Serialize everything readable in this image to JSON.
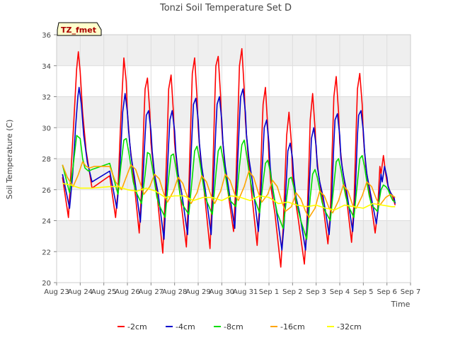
{
  "chart_data": {
    "type": "line",
    "title": "Tonzi Soil Temperature Set D",
    "xlabel": "Time",
    "ylabel": "Soil Temperature (C)",
    "tag": "TZ_fmet",
    "xlim": [
      0,
      15
    ],
    "ylim": [
      20,
      36
    ],
    "xticks": [
      0,
      1,
      2,
      3,
      4,
      5,
      6,
      7,
      8,
      9,
      10,
      11,
      12,
      13,
      14,
      15
    ],
    "xtick_labels": [
      "Aug 23",
      "Aug 24",
      "Aug 25",
      "Aug 26",
      "Aug 27",
      "Aug 28",
      "Aug 29",
      "Aug 30",
      "Aug 31",
      "Sep 1",
      "Sep 2",
      "Sep 3",
      "Sep 4",
      "Sep 5",
      "Sep 6",
      "Sep 7"
    ],
    "yticks": [
      20,
      22,
      24,
      26,
      28,
      30,
      32,
      34,
      36
    ],
    "x_unit": "days since Aug 23",
    "grid": true,
    "legend_position": "bottom",
    "series": [
      {
        "name": "-2cm",
        "color": "#ff0000",
        "x": [
          0.25,
          0.5,
          0.62,
          0.75,
          0.85,
          0.92,
          1.0,
          1.1,
          1.25,
          1.5,
          2.25,
          2.5,
          2.6,
          2.7,
          2.75,
          2.85,
          2.95,
          3.0,
          3.1,
          3.25,
          3.5,
          3.6,
          3.7,
          3.75,
          3.85,
          3.95,
          4.0,
          4.1,
          4.25,
          4.5,
          4.6,
          4.7,
          4.75,
          4.85,
          4.95,
          5.0,
          5.1,
          5.25,
          5.5,
          5.6,
          5.7,
          5.75,
          5.85,
          5.95,
          6.0,
          6.1,
          6.25,
          6.5,
          6.6,
          6.7,
          6.75,
          6.85,
          6.95,
          7.0,
          7.1,
          7.25,
          7.5,
          7.6,
          7.7,
          7.75,
          7.85,
          7.95,
          8.0,
          8.1,
          8.25,
          8.5,
          8.6,
          8.7,
          8.75,
          8.85,
          8.95,
          9.0,
          9.1,
          9.25,
          9.5,
          9.6,
          9.7,
          9.75,
          9.85,
          9.95,
          10.0,
          10.1,
          10.25,
          10.5,
          10.6,
          10.7,
          10.75,
          10.85,
          10.95,
          11.0,
          11.1,
          11.25,
          11.5,
          11.6,
          11.7,
          11.75,
          11.85,
          11.95,
          12.0,
          12.1,
          12.25,
          12.5,
          12.6,
          12.7,
          12.75,
          12.85,
          12.95,
          13.0,
          13.1,
          13.25,
          13.5,
          13.6,
          13.7,
          13.75,
          13.85,
          13.95,
          14.0,
          14.1,
          14.25,
          14.35
        ],
        "y": [
          26.8,
          24.2,
          27.5,
          31.0,
          33.8,
          34.9,
          33.6,
          31.0,
          28.5,
          26.1,
          26.9,
          24.2,
          26.0,
          29.8,
          31.5,
          34.5,
          33.0,
          31.0,
          29.0,
          27.0,
          23.2,
          26.0,
          30.5,
          32.5,
          33.2,
          31.0,
          29.0,
          27.5,
          25.8,
          21.9,
          25.5,
          30.0,
          32.5,
          33.4,
          31.0,
          29.0,
          27.5,
          25.5,
          22.3,
          26.0,
          31.0,
          33.5,
          34.5,
          32.0,
          30.0,
          28.0,
          26.0,
          22.2,
          26.0,
          31.5,
          34.0,
          34.6,
          32.0,
          30.0,
          28.0,
          26.0,
          23.3,
          26.5,
          31.5,
          34.0,
          35.1,
          32.5,
          30.5,
          28.5,
          26.0,
          22.4,
          25.0,
          29.5,
          31.5,
          32.6,
          30.0,
          28.0,
          26.0,
          24.5,
          21.0,
          23.5,
          27.5,
          29.5,
          31.0,
          29.0,
          27.0,
          25.5,
          24.0,
          21.2,
          23.5,
          28.0,
          30.5,
          32.2,
          30.0,
          28.5,
          27.0,
          25.5,
          22.5,
          24.5,
          29.5,
          32.0,
          33.3,
          31.0,
          29.0,
          27.5,
          26.0,
          22.6,
          25.0,
          30.0,
          32.5,
          33.5,
          31.5,
          29.5,
          27.5,
          26.0,
          23.2,
          24.5,
          27.5,
          27.0,
          28.2,
          27.0,
          26.5,
          26.0,
          25.5,
          25.0
        ]
      },
      {
        "name": "-4cm",
        "color": "#0000cc",
        "x": [
          0.25,
          0.55,
          0.68,
          0.8,
          0.9,
          0.95,
          1.05,
          1.15,
          1.3,
          1.5,
          2.25,
          2.55,
          2.65,
          2.75,
          2.8,
          2.9,
          3.0,
          3.05,
          3.15,
          3.3,
          3.55,
          3.65,
          3.75,
          3.8,
          3.9,
          4.0,
          4.05,
          4.15,
          4.3,
          4.55,
          4.65,
          4.75,
          4.8,
          4.9,
          5.0,
          5.05,
          5.15,
          5.3,
          5.55,
          5.65,
          5.75,
          5.8,
          5.9,
          6.0,
          6.05,
          6.15,
          6.3,
          6.55,
          6.65,
          6.75,
          6.8,
          6.9,
          7.0,
          7.05,
          7.15,
          7.3,
          7.55,
          7.65,
          7.75,
          7.8,
          7.9,
          8.0,
          8.05,
          8.15,
          8.3,
          8.55,
          8.65,
          8.75,
          8.8,
          8.9,
          9.0,
          9.05,
          9.15,
          9.3,
          9.55,
          9.65,
          9.75,
          9.8,
          9.9,
          10.0,
          10.05,
          10.15,
          10.3,
          10.55,
          10.65,
          10.75,
          10.8,
          10.9,
          11.0,
          11.05,
          11.15,
          11.3,
          11.55,
          11.65,
          11.75,
          11.8,
          11.9,
          12.0,
          12.05,
          12.15,
          12.3,
          12.55,
          12.65,
          12.75,
          12.8,
          12.9,
          13.0,
          13.05,
          13.15,
          13.3,
          13.55,
          13.65,
          13.75,
          13.8,
          13.9,
          14.0,
          14.05,
          14.15,
          14.3,
          14.35
        ],
        "y": [
          27.0,
          24.8,
          27.0,
          30.0,
          32.0,
          32.6,
          31.5,
          29.5,
          27.8,
          26.5,
          27.2,
          24.8,
          26.5,
          29.5,
          31.0,
          32.2,
          31.0,
          29.8,
          28.2,
          26.8,
          23.9,
          26.5,
          29.5,
          30.8,
          31.1,
          29.8,
          28.5,
          27.0,
          25.8,
          22.8,
          25.8,
          29.0,
          30.5,
          31.1,
          29.8,
          28.5,
          27.0,
          25.8,
          23.1,
          26.5,
          30.0,
          31.5,
          31.9,
          30.5,
          29.0,
          27.5,
          26.0,
          23.1,
          26.5,
          30.0,
          31.5,
          32.0,
          30.5,
          29.0,
          27.5,
          26.0,
          23.5,
          27.0,
          30.5,
          32.0,
          32.5,
          31.0,
          29.5,
          28.0,
          26.5,
          23.3,
          25.5,
          28.5,
          30.0,
          30.5,
          29.0,
          27.5,
          26.0,
          24.8,
          22.1,
          24.0,
          27.0,
          28.5,
          29.0,
          28.0,
          26.8,
          25.5,
          24.5,
          22.1,
          24.5,
          27.5,
          29.3,
          30.0,
          28.8,
          27.5,
          26.5,
          25.5,
          23.1,
          25.0,
          29.0,
          30.5,
          30.9,
          29.5,
          28.0,
          27.0,
          25.8,
          23.3,
          25.5,
          29.5,
          30.8,
          31.1,
          29.8,
          28.5,
          27.0,
          25.8,
          23.8,
          25.0,
          27.0,
          26.5,
          27.5,
          26.8,
          26.2,
          25.8,
          25.5,
          25.1
        ]
      },
      {
        "name": "-8cm",
        "color": "#00dd00",
        "x": [
          0.25,
          0.55,
          0.7,
          0.85,
          1.0,
          1.1,
          1.2,
          1.35,
          1.5,
          2.25,
          2.6,
          2.72,
          2.85,
          2.95,
          3.05,
          3.15,
          3.25,
          3.35,
          3.6,
          3.75,
          3.85,
          3.95,
          4.05,
          4.15,
          4.25,
          4.35,
          4.6,
          4.75,
          4.85,
          4.95,
          5.05,
          5.15,
          5.25,
          5.35,
          5.6,
          5.75,
          5.85,
          5.95,
          6.05,
          6.15,
          6.25,
          6.35,
          6.6,
          6.75,
          6.85,
          6.95,
          7.05,
          7.15,
          7.25,
          7.35,
          7.6,
          7.75,
          7.85,
          7.95,
          8.05,
          8.15,
          8.25,
          8.35,
          8.6,
          8.75,
          8.85,
          8.95,
          9.05,
          9.15,
          9.25,
          9.35,
          9.6,
          9.75,
          9.85,
          9.95,
          10.05,
          10.15,
          10.25,
          10.35,
          10.6,
          10.75,
          10.85,
          10.95,
          11.05,
          11.15,
          11.25,
          11.35,
          11.6,
          11.75,
          11.85,
          11.95,
          12.05,
          12.15,
          12.25,
          12.35,
          12.6,
          12.75,
          12.85,
          12.95,
          13.05,
          13.15,
          13.25,
          13.35,
          13.6,
          13.75,
          13.85,
          13.95,
          14.05,
          14.15,
          14.25,
          14.35
        ],
        "y": [
          27.6,
          25.8,
          27.5,
          29.5,
          29.3,
          28.0,
          27.4,
          27.2,
          27.3,
          27.7,
          25.7,
          27.5,
          29.2,
          29.3,
          28.5,
          27.5,
          26.5,
          25.9,
          25.1,
          27.0,
          28.4,
          28.3,
          27.5,
          26.5,
          25.5,
          25.0,
          24.2,
          26.8,
          28.2,
          28.3,
          27.5,
          26.5,
          25.5,
          25.0,
          24.4,
          26.8,
          28.5,
          28.8,
          28.0,
          27.0,
          26.0,
          25.3,
          24.4,
          27.0,
          28.5,
          28.8,
          28.0,
          27.0,
          26.0,
          25.3,
          24.9,
          27.5,
          28.9,
          29.2,
          28.3,
          27.2,
          26.3,
          25.6,
          24.5,
          26.5,
          27.7,
          27.9,
          27.2,
          26.2,
          25.3,
          24.5,
          23.5,
          25.5,
          26.7,
          26.8,
          26.2,
          25.3,
          24.6,
          24.0,
          22.8,
          25.5,
          27.0,
          27.3,
          26.8,
          26.0,
          25.2,
          24.7,
          24.0,
          26.3,
          27.8,
          28.0,
          27.3,
          26.4,
          25.6,
          25.0,
          24.2,
          26.5,
          28.0,
          28.2,
          27.5,
          26.5,
          25.6,
          25.0,
          24.6,
          26.0,
          26.3,
          26.2,
          26.0,
          25.6,
          25.3,
          25.2
        ]
      },
      {
        "name": "-16cm",
        "color": "#ffa500",
        "x": [
          0.25,
          0.45,
          0.7,
          0.9,
          1.1,
          1.25,
          1.4,
          1.6,
          2.25,
          2.5,
          2.75,
          2.95,
          3.15,
          3.35,
          3.55,
          3.7,
          3.95,
          4.15,
          4.35,
          4.55,
          4.7,
          4.95,
          5.15,
          5.35,
          5.55,
          5.7,
          5.95,
          6.15,
          6.35,
          6.55,
          6.7,
          6.95,
          7.15,
          7.35,
          7.55,
          7.7,
          7.95,
          8.15,
          8.35,
          8.55,
          8.7,
          8.95,
          9.15,
          9.35,
          9.55,
          9.7,
          9.95,
          10.15,
          10.35,
          10.55,
          10.7,
          10.95,
          11.15,
          11.35,
          11.55,
          11.7,
          11.95,
          12.15,
          12.35,
          12.55,
          12.7,
          12.95,
          13.15,
          13.35,
          13.55,
          13.7,
          13.95,
          14.15,
          14.35
        ],
        "y": [
          27.6,
          26.8,
          26.2,
          26.9,
          27.8,
          27.5,
          27.4,
          27.5,
          27.5,
          26.5,
          26.0,
          26.8,
          27.6,
          27.3,
          26.4,
          25.7,
          26.2,
          27.0,
          26.7,
          25.7,
          25.2,
          25.9,
          26.8,
          26.4,
          25.5,
          25.1,
          25.8,
          26.9,
          26.5,
          25.6,
          25.1,
          25.9,
          27.0,
          26.6,
          25.7,
          25.3,
          26.2,
          27.2,
          26.8,
          25.8,
          25.2,
          25.7,
          26.6,
          26.2,
          25.2,
          24.6,
          24.9,
          25.8,
          25.4,
          24.6,
          24.2,
          24.8,
          25.9,
          25.6,
          24.8,
          24.5,
          25.3,
          26.3,
          25.9,
          25.0,
          24.8,
          25.6,
          26.5,
          26.2,
          25.4,
          25.0,
          25.5,
          25.7,
          25.5
        ]
      },
      {
        "name": "-32cm",
        "color": "#ffff00",
        "x": [
          0.25,
          0.6,
          1.0,
          1.5,
          2.25,
          2.6,
          3.0,
          3.4,
          3.8,
          4.2,
          4.6,
          5.0,
          5.4,
          5.8,
          6.2,
          6.6,
          7.0,
          7.4,
          7.8,
          8.2,
          8.6,
          9.0,
          9.4,
          9.8,
          10.2,
          10.6,
          11.0,
          11.4,
          11.8,
          12.2,
          12.6,
          13.0,
          13.4,
          13.8,
          14.2,
          14.35
        ],
        "y": [
          26.4,
          26.3,
          26.1,
          26.1,
          26.2,
          26.2,
          26.0,
          25.9,
          26.1,
          25.9,
          25.5,
          25.6,
          25.6,
          25.3,
          25.5,
          25.5,
          25.3,
          25.6,
          25.5,
          25.3,
          25.6,
          25.5,
          25.1,
          25.2,
          25.0,
          24.9,
          25.0,
          24.8,
          24.7,
          25.0,
          24.9,
          24.8,
          25.1,
          25.0,
          24.9,
          24.9
        ]
      }
    ]
  }
}
